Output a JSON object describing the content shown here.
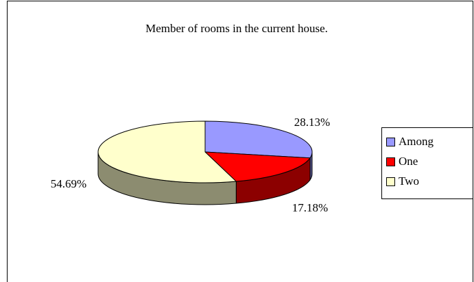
{
  "chart_data": {
    "type": "pie",
    "title": "Member of rooms in the current house.",
    "categories": [
      "Among",
      "One",
      "Two"
    ],
    "values": [
      28.13,
      17.18,
      54.69
    ],
    "value_labels": [
      "28.13%",
      "17.18%",
      "54.69%"
    ],
    "colors": [
      "#9999ff",
      "#ff0000",
      "#ffffcc"
    ],
    "legend": "right"
  }
}
